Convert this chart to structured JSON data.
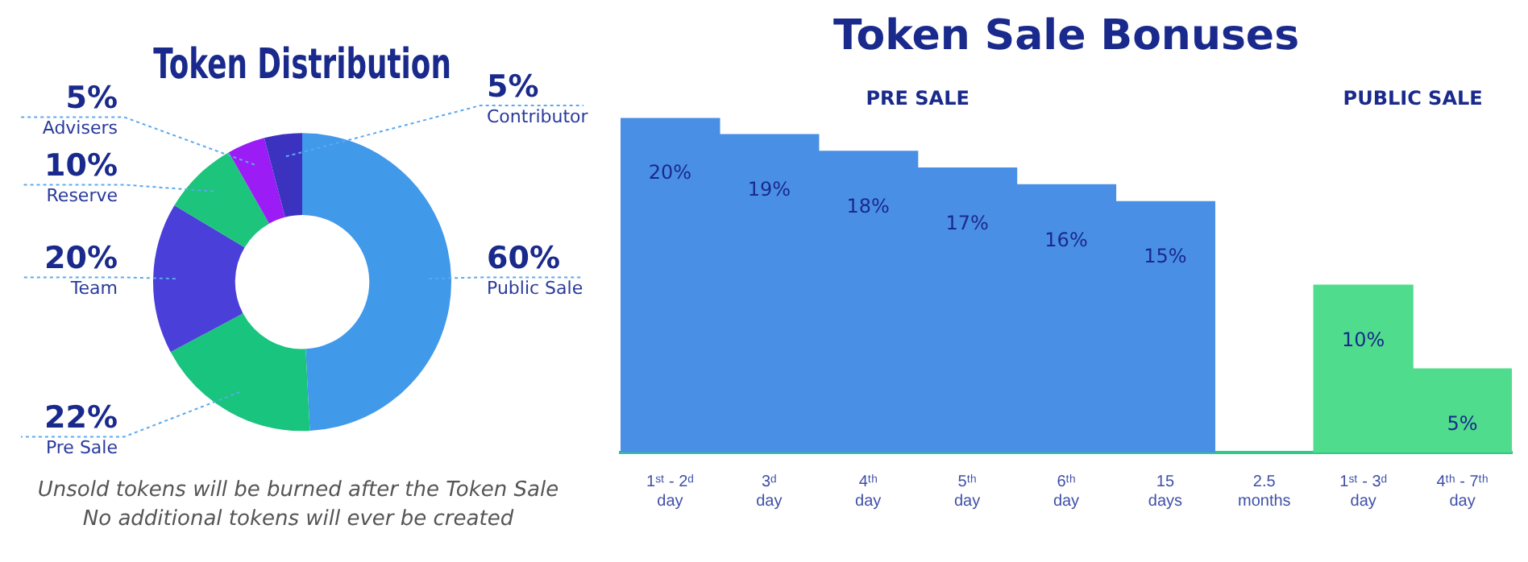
{
  "chart_data": [
    {
      "type": "donut",
      "title": "Token Distribution",
      "categories": [
        "Public Sale",
        "Pre Sale",
        "Team",
        "Reserve",
        "Advisers",
        "Contributor"
      ],
      "values": [
        60,
        22,
        20,
        10,
        5,
        5
      ],
      "colors": [
        "#4199ea",
        "#18c47e",
        "#4a3fd8",
        "#1cc47c",
        "#9b1cf5",
        "#3b32c0"
      ],
      "value_labels": [
        "60%",
        "22%",
        "20%",
        "10%",
        "5%",
        "5%"
      ],
      "annotations": [
        "Unsold tokens will be burned after the Token Sale",
        "No additional tokens will ever be created"
      ],
      "legend": false
    },
    {
      "type": "bar",
      "title": "Token Sale Bonuses",
      "categories": [
        "1ˢᵗ - 2ᵈ day",
        "3ᵈ day",
        "4ᵗʰ day",
        "5ᵗʰ day",
        "6ᵗʰ day",
        "15 days",
        "2.5 months",
        "1ˢᵗ - 3ᵈ day",
        "4ᵗʰ - 7ᵗʰ day"
      ],
      "values": [
        20,
        19,
        18,
        17,
        16,
        15,
        null,
        10,
        5
      ],
      "colors": [
        "#4a8fe6",
        "#4a8fe6",
        "#4a8fe6",
        "#4a8fe6",
        "#4a8fe6",
        "#4a8fe6",
        "#4a8fe6",
        "#4fdc8c",
        "#4fdc8c"
      ],
      "value_labels": [
        "20%",
        "19%",
        "18%",
        "17%",
        "16%",
        "15%",
        null,
        "10%",
        "5%"
      ],
      "tick_labels": "x",
      "grid": false,
      "legend": false,
      "annotations": [
        "PRE SALE",
        "PUBLIC SALE"
      ]
    }
  ]
}
